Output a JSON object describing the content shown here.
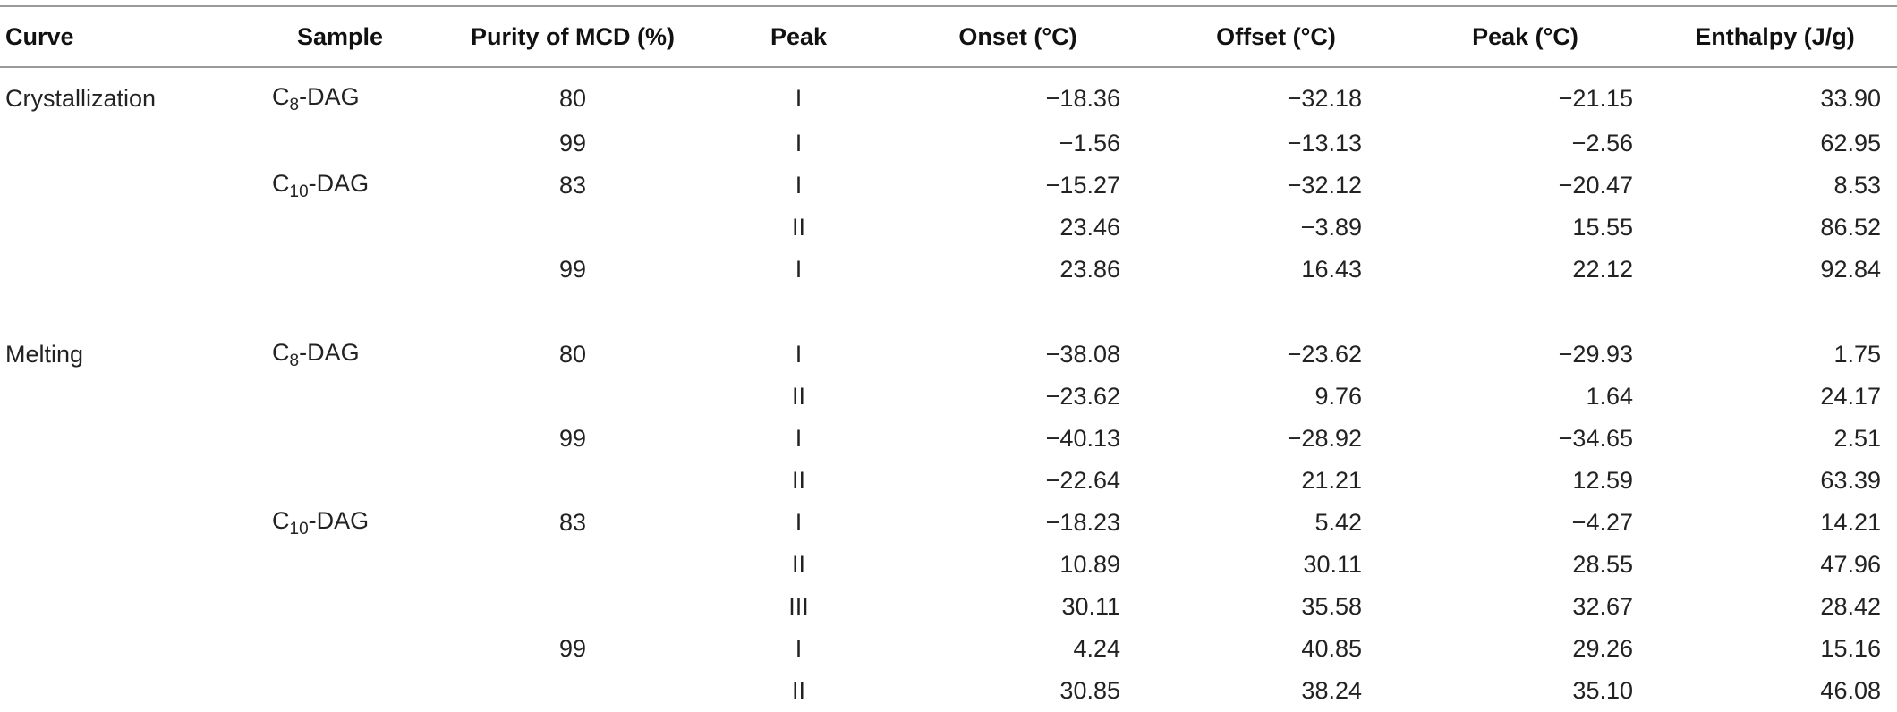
{
  "table": {
    "headers": [
      "Curve",
      "Sample",
      "Purity of MCD (%)",
      "Peak",
      "Onset (°C)",
      "Offset (°C)",
      "Peak (°C)",
      "Enthalpy (J/g)"
    ],
    "rows": [
      {
        "curve": "Crystallization",
        "sample": {
          "prefix": "C",
          "sub": "8",
          "suffix": "-DAG"
        },
        "purity": "80",
        "peak": "I",
        "onset": "−18.36",
        "offset": "−32.18",
        "peak_temp": "−21.15",
        "enthalpy": "33.90"
      },
      {
        "curve": "",
        "sample": null,
        "purity": "99",
        "peak": "I",
        "onset": "−1.56",
        "offset": "−13.13",
        "peak_temp": "−2.56",
        "enthalpy": "62.95"
      },
      {
        "curve": "",
        "sample": {
          "prefix": "C",
          "sub": "10",
          "suffix": "-DAG"
        },
        "purity": "83",
        "peak": "I",
        "onset": "−15.27",
        "offset": "−32.12",
        "peak_temp": "−20.47",
        "enthalpy": "8.53"
      },
      {
        "curve": "",
        "sample": null,
        "purity": "",
        "peak": "II",
        "onset": "23.46",
        "offset": "−3.89",
        "peak_temp": "15.55",
        "enthalpy": "86.52"
      },
      {
        "curve": "",
        "sample": null,
        "purity": "99",
        "peak": "I",
        "onset": "23.86",
        "offset": "16.43",
        "peak_temp": "22.12",
        "enthalpy": "92.84"
      },
      {
        "curve": "Melting",
        "sample": {
          "prefix": "C",
          "sub": "8",
          "suffix": "-DAG"
        },
        "purity": "80",
        "peak": "I",
        "onset": "−38.08",
        "offset": "−23.62",
        "peak_temp": "−29.93",
        "enthalpy": "1.75"
      },
      {
        "curve": "",
        "sample": null,
        "purity": "",
        "peak": "II",
        "onset": "−23.62",
        "offset": "9.76",
        "peak_temp": "1.64",
        "enthalpy": "24.17"
      },
      {
        "curve": "",
        "sample": null,
        "purity": "99",
        "peak": "I",
        "onset": "−40.13",
        "offset": "−28.92",
        "peak_temp": "−34.65",
        "enthalpy": "2.51"
      },
      {
        "curve": "",
        "sample": null,
        "purity": "",
        "peak": "II",
        "onset": "−22.64",
        "offset": "21.21",
        "peak_temp": "12.59",
        "enthalpy": "63.39"
      },
      {
        "curve": "",
        "sample": {
          "prefix": "C",
          "sub": "10",
          "suffix": "-DAG"
        },
        "purity": "83",
        "peak": "I",
        "onset": "−18.23",
        "offset": "5.42",
        "peak_temp": "−4.27",
        "enthalpy": "14.21"
      },
      {
        "curve": "",
        "sample": null,
        "purity": "",
        "peak": "II",
        "onset": "10.89",
        "offset": "30.11",
        "peak_temp": "28.55",
        "enthalpy": "47.96"
      },
      {
        "curve": "",
        "sample": null,
        "purity": "",
        "peak": "III",
        "onset": "30.11",
        "offset": "35.58",
        "peak_temp": "32.67",
        "enthalpy": "28.42"
      },
      {
        "curve": "",
        "sample": null,
        "purity": "99",
        "peak": "I",
        "onset": "4.24",
        "offset": "40.85",
        "peak_temp": "29.26",
        "enthalpy": "15.16"
      },
      {
        "curve": "",
        "sample": null,
        "purity": "",
        "peak": "II",
        "onset": "30.85",
        "offset": "38.24",
        "peak_temp": "35.10",
        "enthalpy": "46.08"
      }
    ]
  }
}
